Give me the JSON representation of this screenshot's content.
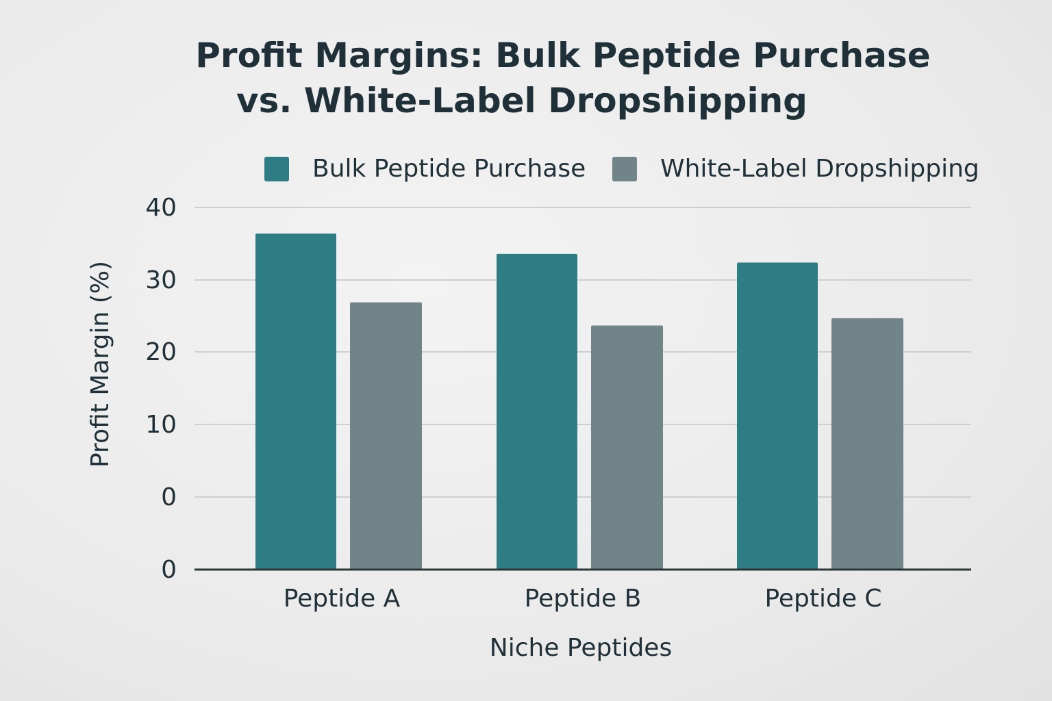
{
  "chart_data": {
    "type": "bar",
    "title_line1": "Profit Margins: Bulk Peptide Purchase",
    "title_line2": "vs. White-Label Dropshipping",
    "xlabel": "Niche Peptides",
    "ylabel": "Profit Margin (%)",
    "categories": [
      "Peptide A",
      "Peptide B",
      "Peptide C"
    ],
    "y_tick_labels": [
      "0",
      "0",
      "10",
      "20",
      "30",
      "40"
    ],
    "series": [
      {
        "name": "Bulk Peptide Purchase",
        "color": "#2f7d84",
        "values": [
          36.4,
          33.6,
          32.4
        ]
      },
      {
        "name": "White-Label Dropshipping",
        "color": "#718589",
        "values": [
          26.9,
          23.7,
          24.7
        ]
      }
    ],
    "grid": true,
    "legend": "top-right"
  }
}
